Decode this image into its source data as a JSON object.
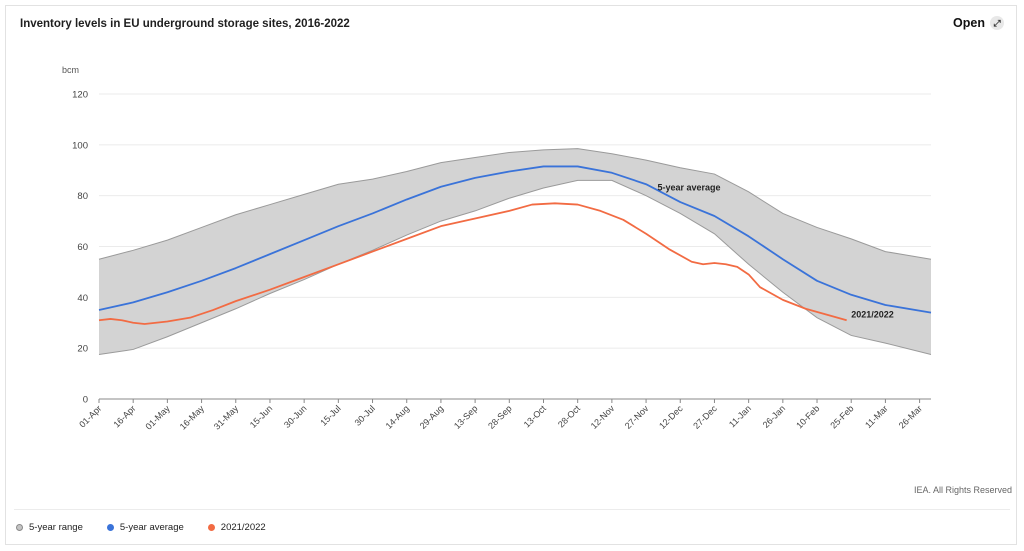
{
  "header": {
    "title": "Inventory levels in EU underground storage sites, 2016-2022",
    "open_label": "Open",
    "open_icon": "expand-arrows-icon"
  },
  "footer": {
    "credit": "IEA. All Rights Reserved"
  },
  "legend": {
    "items": [
      {
        "label": "5-year range",
        "color": "#c4c4c4"
      },
      {
        "label": "5-year average",
        "color": "#3a73d9"
      },
      {
        "label": "2021/2022",
        "color": "#f26b43"
      }
    ]
  },
  "chart_data": {
    "type": "area",
    "unit": "bcm",
    "ylim": [
      0,
      120
    ],
    "yticks": [
      0,
      20,
      40,
      60,
      80,
      100,
      120
    ],
    "grid": true,
    "legend_position": "bottom-left",
    "x_tick_labels": [
      "01-Apr",
      "16-Apr",
      "01-May",
      "16-May",
      "31-May",
      "15-Jun",
      "30-Jun",
      "15-Jul",
      "30-Jul",
      "14-Aug",
      "29-Aug",
      "13-Sep",
      "28-Sep",
      "13-Oct",
      "28-Oct",
      "12-Nov",
      "27-Nov",
      "12-Dec",
      "27-Dec",
      "11-Jan",
      "26-Jan",
      "10-Feb",
      "25-Feb",
      "11-Mar",
      "26-Mar"
    ],
    "x_days": [
      0,
      15,
      30,
      45,
      60,
      75,
      90,
      105,
      120,
      135,
      150,
      165,
      180,
      195,
      210,
      225,
      240,
      255,
      270,
      285,
      300,
      315,
      330,
      345,
      360
    ],
    "x_max_day": 365,
    "series": [
      {
        "name": "5-year range",
        "color": "#d3d3d3",
        "days": [
          0,
          15,
          30,
          45,
          60,
          75,
          90,
          105,
          120,
          135,
          150,
          165,
          180,
          195,
          210,
          225,
          240,
          255,
          270,
          285,
          300,
          315,
          330,
          345,
          365
        ],
        "upper": [
          55,
          58.5,
          62.5,
          67.5,
          72.5,
          76.5,
          80.5,
          84.5,
          86.5,
          89.5,
          93,
          95,
          97,
          98,
          98.5,
          96.5,
          94,
          91,
          88.5,
          81.5,
          73,
          67.5,
          63,
          58,
          55
        ],
        "lower": [
          17.5,
          19.5,
          24.5,
          30,
          35.5,
          41.5,
          47,
          53,
          58.5,
          64.5,
          70,
          74,
          79,
          83,
          86,
          86,
          80,
          73,
          65,
          53,
          42,
          32,
          25,
          22,
          17.5
        ]
      },
      {
        "name": "5-year average",
        "color": "#3a73d9",
        "days": [
          0,
          15,
          30,
          45,
          60,
          75,
          90,
          105,
          120,
          135,
          150,
          165,
          180,
          195,
          210,
          225,
          240,
          255,
          270,
          285,
          300,
          315,
          330,
          345,
          365
        ],
        "values": [
          35,
          38,
          42,
          46.5,
          51.5,
          57,
          62.5,
          68,
          73,
          78.5,
          83.5,
          87,
          89.5,
          91.5,
          91.5,
          89,
          84.5,
          77.5,
          72,
          64,
          55,
          46.5,
          41,
          37,
          34
        ]
      },
      {
        "name": "2021/2022",
        "color": "#f26b43",
        "days": [
          0,
          5,
          10,
          15,
          20,
          30,
          40,
          50,
          60,
          75,
          90,
          105,
          120,
          135,
          150,
          165,
          180,
          190,
          200,
          210,
          220,
          230,
          240,
          250,
          260,
          265,
          270,
          275,
          280,
          285,
          290,
          300,
          310,
          320,
          328
        ],
        "values": [
          31,
          31.5,
          31,
          30,
          29.5,
          30.5,
          32,
          35,
          38.5,
          43,
          48,
          53,
          58,
          63,
          68,
          71,
          74,
          76.5,
          77,
          76.5,
          74,
          70.5,
          65,
          59,
          54,
          53,
          53.5,
          53,
          52,
          49,
          44,
          39,
          35.5,
          33,
          31
        ]
      }
    ],
    "annotations": [
      {
        "text": "5-year average",
        "series": "5-year average",
        "day": 245,
        "value": 82
      },
      {
        "text": "2021/2022",
        "series": "2021/2022",
        "day": 330,
        "value": 32
      }
    ]
  }
}
